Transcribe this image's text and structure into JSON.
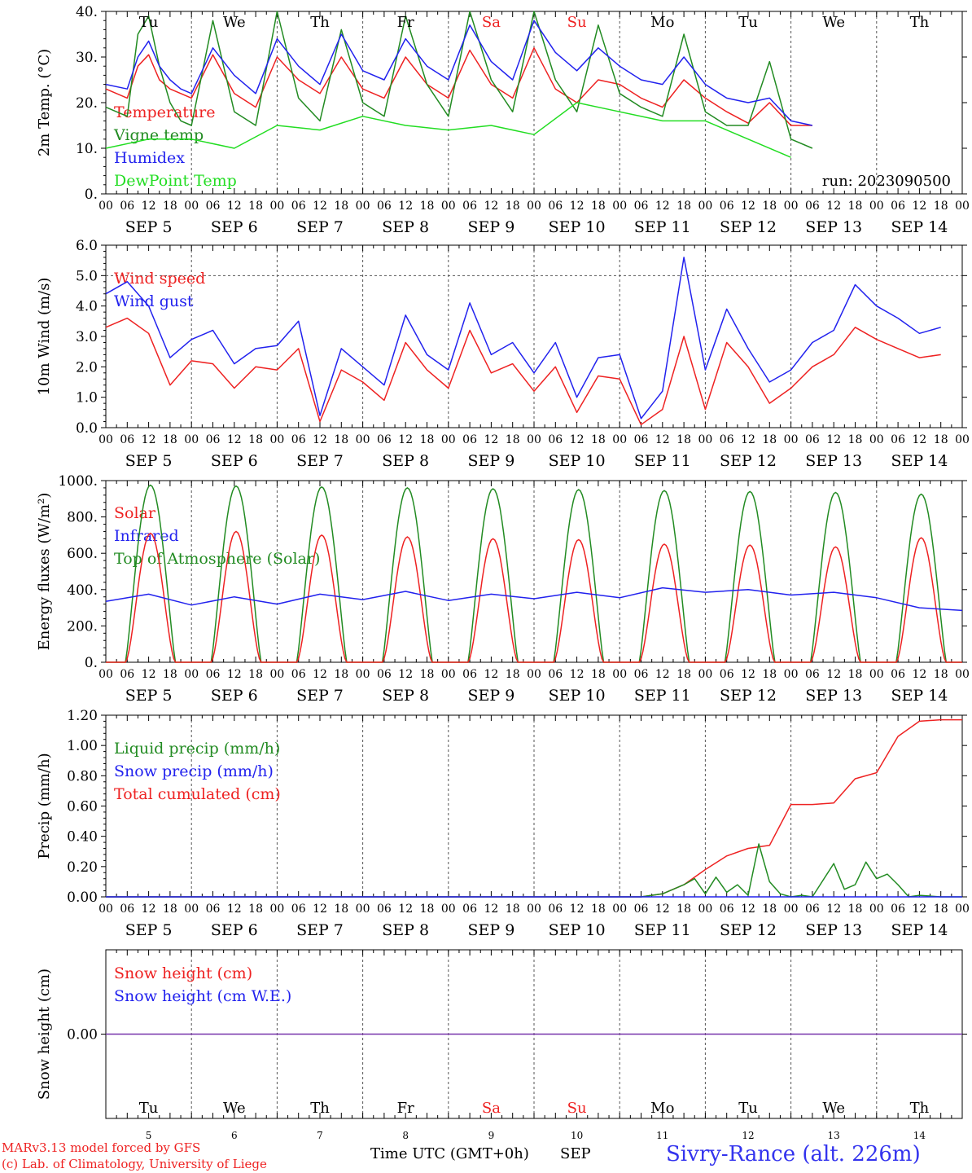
{
  "days": [
    {
      "abbr": "Tu",
      "weekend": false,
      "date": "5"
    },
    {
      "abbr": "We",
      "weekend": false,
      "date": "6"
    },
    {
      "abbr": "Th",
      "weekend": false,
      "date": "7"
    },
    {
      "abbr": "Fr",
      "weekend": false,
      "date": "8"
    },
    {
      "abbr": "Sa",
      "weekend": true,
      "date": "9"
    },
    {
      "abbr": "Su",
      "weekend": true,
      "date": "10"
    },
    {
      "abbr": "Mo",
      "weekend": false,
      "date": "11"
    },
    {
      "abbr": "Tu",
      "weekend": false,
      "date": "12"
    },
    {
      "abbr": "We",
      "weekend": false,
      "date": "13"
    },
    {
      "abbr": "Th",
      "weekend": false,
      "date": "14"
    }
  ],
  "month": "SEP",
  "hour_ticks": [
    "00",
    "06",
    "12",
    "18"
  ],
  "colors": {
    "red": "#ee2222",
    "blue": "#2222ee",
    "darkgreen": "#228b22",
    "lightgreen": "#22dd22",
    "weekend": "#ee2222",
    "purple": "#7733aa",
    "title": "#3333ee"
  },
  "footer": {
    "model": "MARv3.13 model forced by GFS",
    "credit": "(c) Lab. of Climatology, University of Liege",
    "xaxis": "Time UTC (GMT+0h)",
    "month": "SEP",
    "station": "Sivry-Rance (alt. 226m)"
  },
  "chart_data": [
    {
      "type": "line",
      "ylabel": "2m Temp. (°C)",
      "ylim": [
        0,
        40
      ],
      "yticks": [
        "0.",
        "10.",
        "20.",
        "30.",
        "40."
      ],
      "run": "run: 2023090500",
      "legend": [
        {
          "name": "Temperature",
          "color": "#ee2222"
        },
        {
          "name": "Vigne temp",
          "color": "#228b22"
        },
        {
          "name": "Humidex",
          "color": "#2222ee"
        },
        {
          "name": "DewPoint Temp",
          "color": "#22dd22"
        }
      ],
      "series": [
        {
          "name": "Temperature",
          "color": "#ee2222",
          "x": [
            0,
            6,
            9,
            12,
            15,
            18,
            21,
            24,
            30,
            36,
            42,
            48,
            54,
            60,
            66,
            72,
            78,
            84,
            90,
            96,
            102,
            108,
            114,
            120,
            126,
            132,
            138,
            144,
            150,
            156,
            162,
            168,
            174,
            180,
            186,
            192,
            198,
            204,
            210,
            216,
            222,
            228,
            234,
            240
          ],
          "values": [
            23,
            21,
            28,
            30.5,
            25,
            23,
            22,
            21,
            30.5,
            22,
            19,
            30,
            25,
            22,
            30,
            23,
            21,
            30,
            24,
            21,
            31.5,
            24,
            21,
            32,
            23,
            20,
            25,
            24,
            21,
            19,
            25,
            21,
            18,
            15.5,
            20,
            15,
            15,
            null,
            null,
            null,
            null,
            null,
            null,
            null
          ]
        },
        {
          "name": "Vigne temp",
          "color": "#228b22",
          "x": [
            0,
            6,
            9,
            12,
            15,
            18,
            21,
            24,
            30,
            36,
            42,
            48,
            54,
            60,
            66,
            72,
            78,
            84,
            90,
            96,
            102,
            108,
            114,
            120,
            126,
            132,
            138,
            144,
            150,
            156,
            162,
            168,
            174,
            180,
            186,
            192,
            198,
            204,
            210,
            216,
            222,
            228,
            234,
            240
          ],
          "values": [
            19,
            17,
            35,
            39,
            28,
            20,
            16,
            15,
            38,
            18,
            15,
            40,
            21,
            16,
            36,
            20,
            17,
            39,
            24,
            17,
            40,
            25,
            18,
            40,
            25,
            18,
            37,
            22,
            19,
            17,
            35,
            18,
            15,
            15,
            29,
            12,
            10,
            null,
            null,
            null,
            null,
            null,
            null,
            null
          ]
        },
        {
          "name": "Humidex",
          "color": "#2222ee",
          "x": [
            0,
            6,
            9,
            12,
            15,
            18,
            21,
            24,
            30,
            36,
            42,
            48,
            54,
            60,
            66,
            72,
            78,
            84,
            90,
            96,
            102,
            108,
            114,
            120,
            126,
            132,
            138,
            144,
            150,
            156,
            162,
            168,
            174,
            180,
            186,
            192,
            198,
            204,
            210,
            216,
            222,
            228,
            234,
            240
          ],
          "values": [
            24,
            23,
            30,
            33.5,
            28,
            25,
            23,
            22,
            32,
            26,
            22,
            34,
            28,
            24,
            35,
            27,
            25,
            34,
            28,
            25,
            37,
            29,
            25,
            38,
            31,
            27,
            32,
            28,
            25,
            24,
            30,
            24,
            21,
            20,
            21,
            16,
            15,
            null,
            null,
            null,
            null,
            null,
            null,
            null
          ]
        },
        {
          "name": "DewPoint Temp",
          "color": "#22dd22",
          "x": [
            0,
            12,
            24,
            36,
            48,
            60,
            72,
            84,
            96,
            108,
            120,
            132,
            144,
            156,
            168,
            180,
            192,
            204,
            216,
            228,
            240
          ],
          "values": [
            10,
            12,
            12,
            10,
            15,
            14,
            17,
            15,
            14,
            15,
            13,
            20,
            18,
            16,
            16,
            12,
            8,
            null,
            null,
            null,
            null
          ]
        }
      ]
    },
    {
      "type": "line",
      "ylabel": "10m Wind (m/s)",
      "ylim": [
        0,
        6
      ],
      "yticks": [
        "0.0",
        "1.0",
        "2.0",
        "3.0",
        "4.0",
        "5.0",
        "6.0"
      ],
      "dashed_y": 5,
      "legend": [
        {
          "name": "Wind speed",
          "color": "#ee2222"
        },
        {
          "name": "Wind gust",
          "color": "#2222ee"
        }
      ],
      "series": [
        {
          "name": "Wind speed",
          "color": "#ee2222",
          "x": [
            0,
            6,
            12,
            18,
            24,
            30,
            36,
            42,
            48,
            54,
            60,
            66,
            72,
            78,
            84,
            90,
            96,
            102,
            108,
            114,
            120,
            126,
            132,
            138,
            144,
            150,
            156,
            162,
            168,
            174,
            180,
            186,
            192,
            198,
            204,
            210,
            216,
            222,
            228,
            234,
            240
          ],
          "values": [
            3.3,
            3.6,
            3.1,
            1.4,
            2.2,
            2.1,
            1.3,
            2.0,
            1.9,
            2.6,
            0.2,
            1.9,
            1.5,
            0.9,
            2.8,
            1.9,
            1.3,
            3.2,
            1.8,
            2.1,
            1.2,
            2.0,
            0.5,
            1.7,
            1.6,
            0.1,
            0.6,
            3.0,
            0.6,
            2.8,
            2.0,
            0.8,
            1.3,
            2.0,
            2.4,
            3.3,
            2.9,
            2.6,
            2.3,
            2.4,
            null
          ]
        },
        {
          "name": "Wind gust",
          "color": "#2222ee",
          "x": [
            0,
            6,
            12,
            18,
            24,
            30,
            36,
            42,
            48,
            54,
            60,
            66,
            72,
            78,
            84,
            90,
            96,
            102,
            108,
            114,
            120,
            126,
            132,
            138,
            144,
            150,
            156,
            162,
            168,
            174,
            180,
            186,
            192,
            198,
            204,
            210,
            216,
            222,
            228,
            234,
            240
          ],
          "values": [
            4.4,
            4.8,
            4.0,
            2.3,
            2.9,
            3.2,
            2.1,
            2.6,
            2.7,
            3.5,
            0.4,
            2.6,
            2.0,
            1.4,
            3.7,
            2.4,
            1.9,
            4.1,
            2.4,
            2.8,
            1.8,
            2.8,
            1.0,
            2.3,
            2.4,
            0.3,
            1.2,
            5.6,
            1.9,
            3.9,
            2.6,
            1.5,
            1.9,
            2.8,
            3.2,
            4.7,
            4.0,
            3.6,
            3.1,
            3.3,
            null
          ]
        }
      ]
    },
    {
      "type": "line",
      "ylabel": "Energy fluxes (W/m²)",
      "ylim": [
        0,
        1000
      ],
      "yticks": [
        "0.",
        "200.",
        "400.",
        "600.",
        "800.",
        "1000."
      ],
      "legend": [
        {
          "name": "Solar",
          "color": "#ee2222"
        },
        {
          "name": "Infrared",
          "color": "#2222ee"
        },
        {
          "name": "Top of Atmosphere (Solar)",
          "color": "#228b22"
        }
      ],
      "diurnal": {
        "rise_hour": 5.5,
        "set_hour": 19.5,
        "noon_hour": 12.5,
        "toa_peak": [
          975,
          970,
          965,
          960,
          955,
          950,
          945,
          940,
          935,
          925
        ],
        "solar_peak": [
          710,
          720,
          700,
          690,
          680,
          675,
          650,
          645,
          635,
          685
        ]
      },
      "series": [
        {
          "name": "Infrared",
          "color": "#2222ee",
          "x": [
            0,
            12,
            24,
            36,
            48,
            60,
            72,
            84,
            96,
            108,
            120,
            132,
            144,
            156,
            168,
            180,
            192,
            204,
            216,
            228,
            240
          ],
          "values": [
            335,
            375,
            315,
            360,
            320,
            375,
            345,
            390,
            340,
            375,
            350,
            385,
            355,
            410,
            385,
            400,
            370,
            385,
            355,
            300,
            285
          ]
        }
      ]
    },
    {
      "type": "line",
      "ylabel": "Precip (mm/h)",
      "ylim": [
        0,
        1.2
      ],
      "yticks": [
        "0.00",
        "0.20",
        "0.40",
        "0.60",
        "0.80",
        "1.00",
        "1.20"
      ],
      "legend": [
        {
          "name": "Liquid precip (mm/h)",
          "color": "#228b22"
        },
        {
          "name": "Snow precip (mm/h)",
          "color": "#2222ee"
        },
        {
          "name": "Total cumulated (cm)",
          "color": "#ee2222"
        }
      ],
      "series": [
        {
          "name": "Total cumulated (cm)",
          "color": "#ee2222",
          "x": [
            0,
            150,
            156,
            162,
            168,
            174,
            180,
            186,
            192,
            198,
            204,
            210,
            216,
            222,
            228,
            234,
            240
          ],
          "values": [
            0,
            0,
            0.02,
            0.08,
            0.18,
            0.27,
            0.32,
            0.34,
            0.61,
            0.61,
            0.62,
            0.78,
            0.82,
            1.06,
            1.16,
            1.17,
            1.17
          ]
        },
        {
          "name": "Liquid precip (mm/h)",
          "color": "#228b22",
          "x": [
            0,
            150,
            156,
            162,
            165,
            168,
            171,
            174,
            177,
            180,
            183,
            186,
            189,
            192,
            195,
            198,
            204,
            207,
            210,
            213,
            216,
            219,
            222,
            225,
            228,
            234,
            240
          ],
          "values": [
            0,
            0,
            0.02,
            0.08,
            0.12,
            0.02,
            0.13,
            0.03,
            0.08,
            0.01,
            0.35,
            0.1,
            0.02,
            0,
            0.01,
            0,
            0.22,
            0.05,
            0.08,
            0.23,
            0.12,
            0.15,
            0.08,
            0,
            0.01,
            0,
            0
          ]
        },
        {
          "name": "Snow precip (mm/h)",
          "color": "#2222ee",
          "x": [
            0,
            240
          ],
          "values": [
            0,
            0
          ]
        }
      ]
    },
    {
      "type": "line",
      "ylabel": "Snow height (cm)",
      "ylim": [
        -1,
        1
      ],
      "yticks": [
        "0.00"
      ],
      "legend": [
        {
          "name": "Snow height (cm)",
          "color": "#ee2222"
        },
        {
          "name": "Snow height (cm W.E.)",
          "color": "#2222ee"
        }
      ],
      "series": [
        {
          "name": "Snow height (cm)",
          "color": "#7733aa",
          "x": [
            0,
            240
          ],
          "values": [
            0,
            0
          ]
        }
      ]
    }
  ]
}
